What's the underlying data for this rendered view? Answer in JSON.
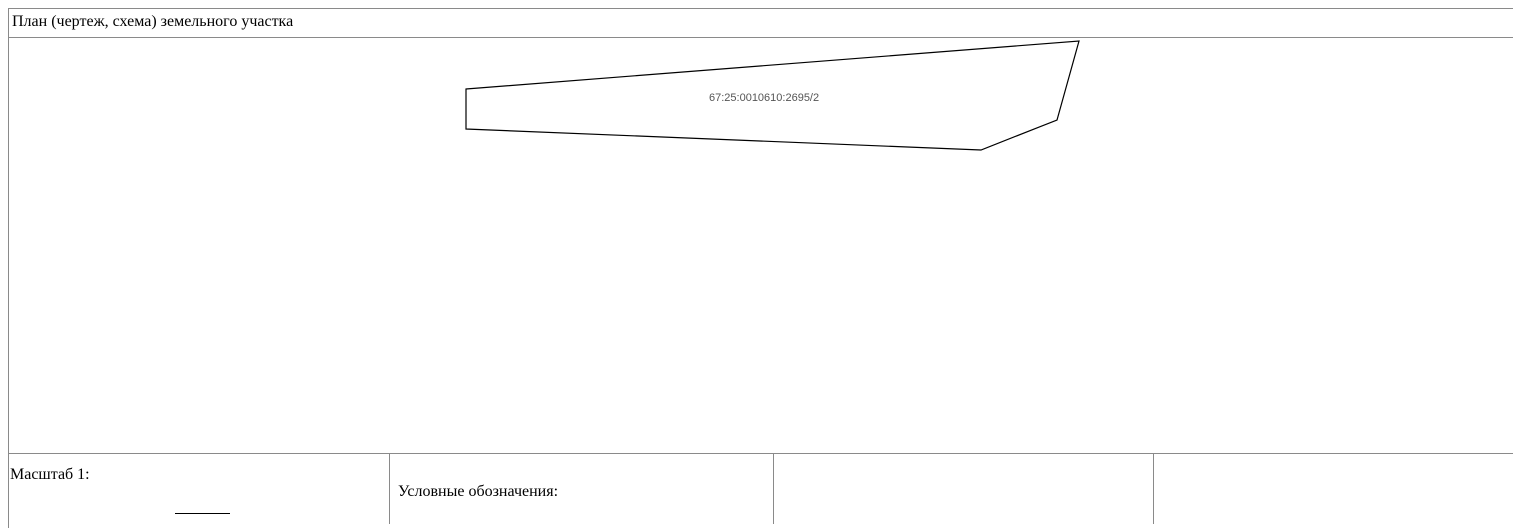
{
  "plan": {
    "title": "План (чертеж, схема) земельного участка",
    "parcel": {
      "cadastral_number": "67:25:0010610:2695/2"
    },
    "scale": {
      "label": "Масштаб 1:",
      "value": ""
    },
    "legend": {
      "label": "Условные обозначения:"
    },
    "colors": {
      "border": "#8a8a8a",
      "parcel_outline": "#000000",
      "parcel_label": "#555555"
    }
  }
}
